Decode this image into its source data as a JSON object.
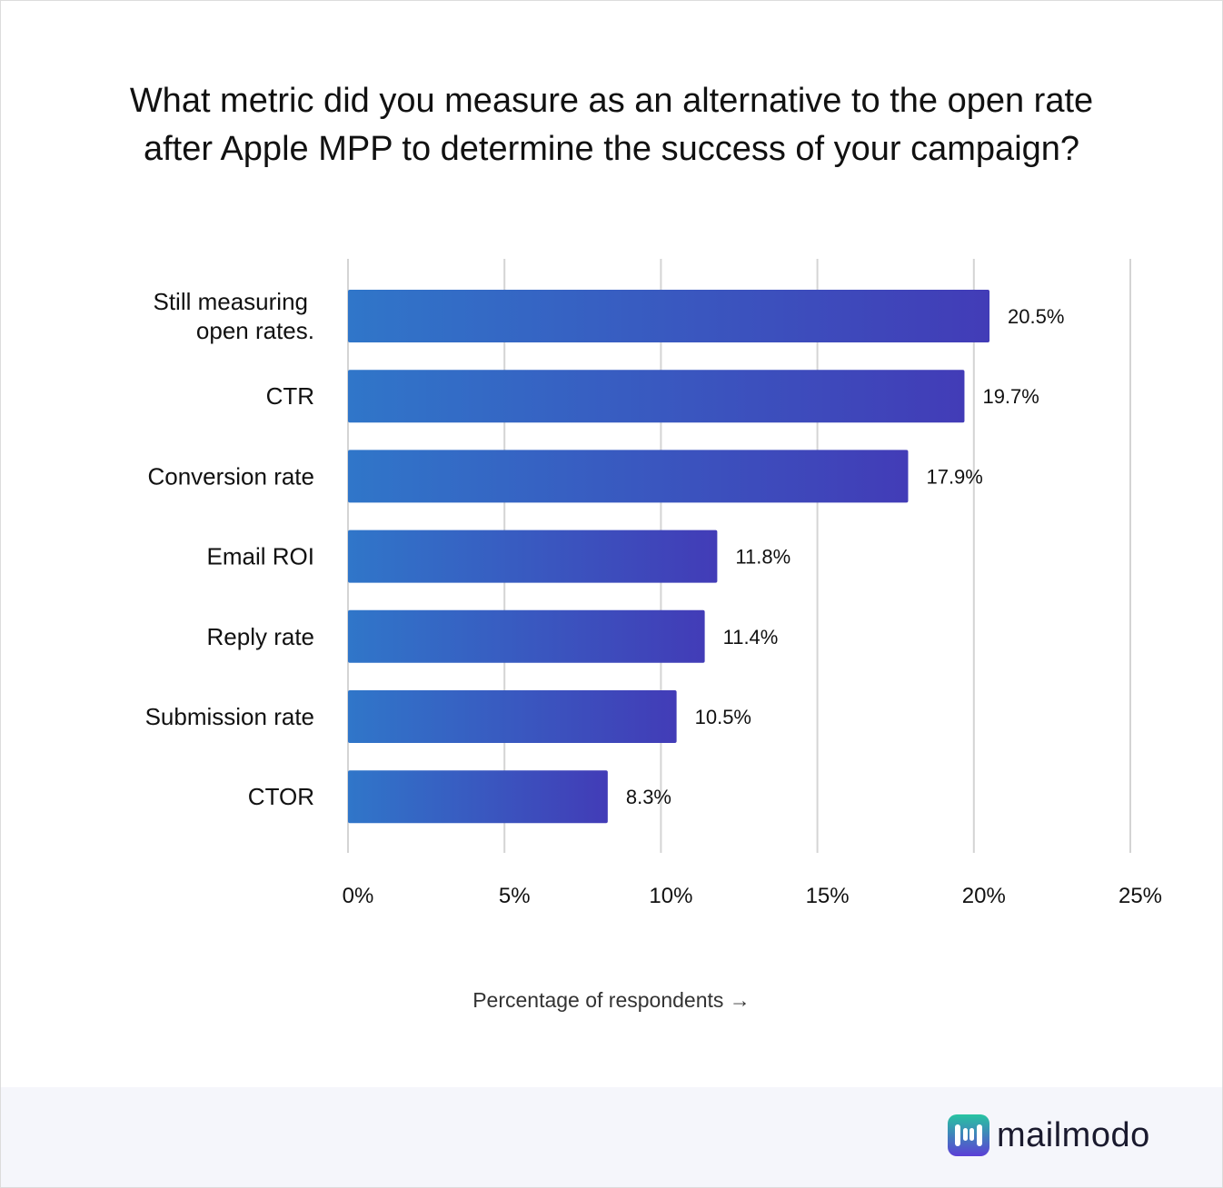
{
  "title": {
    "line1": "What metric did you measure as an alternative to the open rate",
    "line2": "after Apple MPP to determine the success of your campaign?"
  },
  "chart_data": {
    "type": "bar",
    "orientation": "horizontal",
    "categories": [
      [
        "Still measuring",
        "open rates."
      ],
      [
        "CTR"
      ],
      [
        "Conversion rate"
      ],
      [
        "Email ROI"
      ],
      [
        "Reply rate"
      ],
      [
        "Submission rate"
      ],
      [
        "CTOR"
      ]
    ],
    "values": [
      20.5,
      19.7,
      17.9,
      11.8,
      11.4,
      10.5,
      8.3
    ],
    "value_labels": [
      "20.5%",
      "19.7%",
      "17.9%",
      "11.8%",
      "11.4%",
      "10.5%",
      "8.3%"
    ],
    "xlim": [
      0,
      25
    ],
    "xticks": [
      0,
      5,
      10,
      15,
      20,
      25
    ],
    "xtick_labels": [
      "0%",
      "5%",
      "10%",
      "15%",
      "20%",
      "25%"
    ],
    "xlabel": "Percentage of respondents →",
    "grid": "vertical",
    "colors": {
      "bar_start": "#3076c9",
      "bar_end": "#423cb7",
      "grid": "#d4d4d4",
      "text": "#111111"
    }
  },
  "brand": {
    "name": "mailmodo",
    "icon": "mailmodo-logo-icon",
    "colors": {
      "top": "#27c4a1",
      "bottom": "#5b3fd6"
    }
  }
}
